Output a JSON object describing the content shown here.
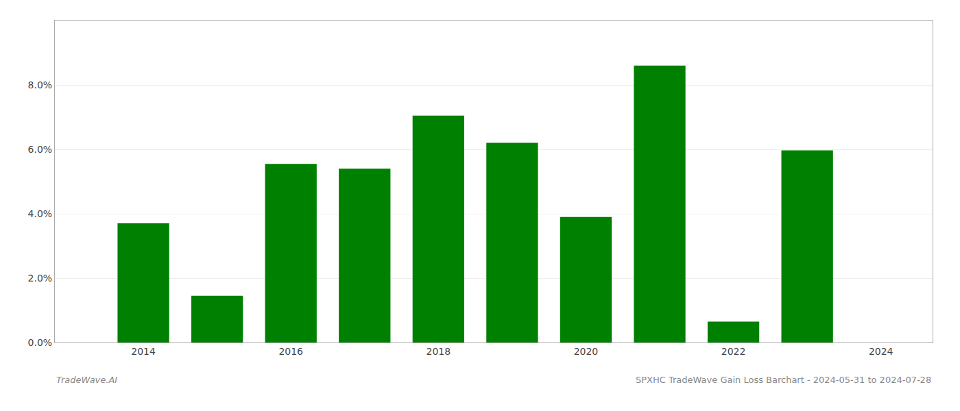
{
  "chart_data": {
    "type": "bar",
    "title": "SPXHC TradeWave Gain Loss Barchart - 2024-05-31 to 2024-07-28",
    "annotations": [
      "TradeWave.AI"
    ],
    "x": [
      2014,
      2015,
      2016,
      2017,
      2018,
      2019,
      2020,
      2021,
      2022,
      2023
    ],
    "values": [
      0.037,
      0.0145,
      0.0555,
      0.054,
      0.0705,
      0.062,
      0.039,
      0.086,
      0.0065,
      0.0597
    ],
    "color": "#008000",
    "xlim": [
      2012.8,
      2024.7
    ],
    "xticks": [
      2014,
      2016,
      2018,
      2020,
      2022,
      2024
    ],
    "ylim": [
      0,
      0.1
    ],
    "yticks": [
      {
        "value": 0.0,
        "label": "0.0%"
      },
      {
        "value": 0.02,
        "label": "2.0%"
      },
      {
        "value": 0.04,
        "label": "4.0%"
      },
      {
        "value": 0.06,
        "label": "6.0%"
      },
      {
        "value": 0.08,
        "label": "8.0%"
      }
    ],
    "grid": true
  }
}
